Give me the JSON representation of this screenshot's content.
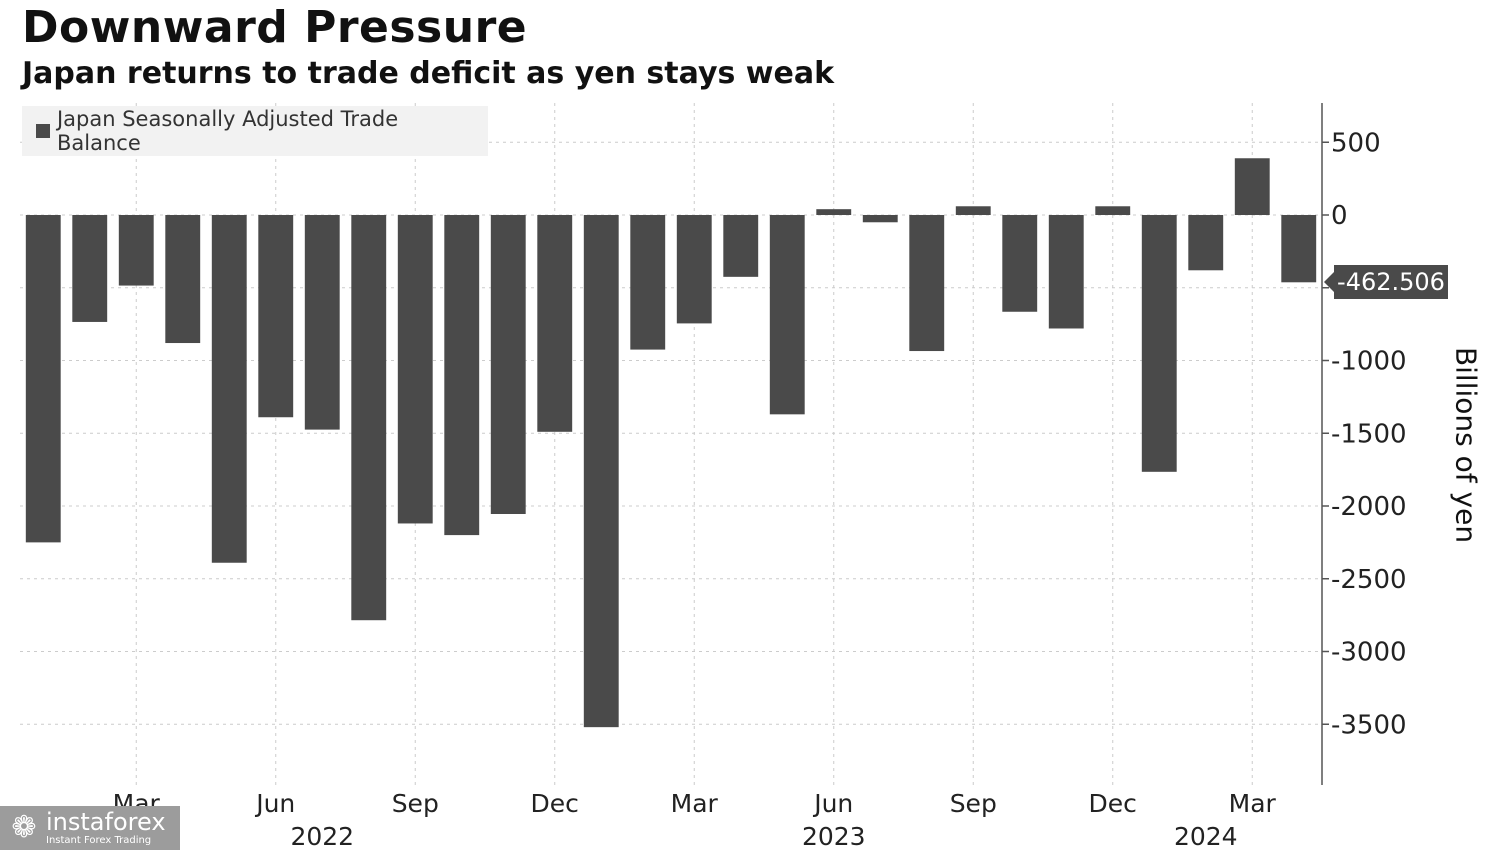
{
  "header": {
    "title": "Downward Pressure",
    "subtitle": "Japan returns to trade deficit as yen stays weak"
  },
  "legend": {
    "label": "Japan Seasonally Adjusted Trade Balance"
  },
  "callout": {
    "value": "-462.506"
  },
  "watermark": {
    "name": "instaforex",
    "tagline": "Instant Forex Trading",
    "icon": "instaforex-logo-icon"
  },
  "colors": {
    "bar": "#4a4a4a",
    "grid": "#cccccc",
    "axis": "#555555",
    "legend_bg": "#f2f2f2",
    "watermark_bg": "#9c9c9c"
  },
  "chart_data": {
    "type": "bar",
    "title": "Downward Pressure",
    "subtitle": "Japan returns to trade deficit as yen stays weak",
    "ylabel": "Billions of yen",
    "xlabel": "",
    "legend_position": "top-left",
    "grid": true,
    "y_axis_side": "right",
    "ylim": [
      -3900,
      750
    ],
    "yticks": [
      500,
      0,
      -500,
      -1000,
      -1500,
      -2000,
      -2500,
      -3000,
      -3500
    ],
    "ytick_labels": [
      "500",
      "0",
      "",
      "-1000",
      "-1500",
      "-2000",
      "-2500",
      "-3000",
      "-3500"
    ],
    "categories": [
      "Jan 2022",
      "Feb 2022",
      "Mar 2022",
      "Apr 2022",
      "May 2022",
      "Jun 2022",
      "Jul 2022",
      "Aug 2022",
      "Sep 2022",
      "Oct 2022",
      "Nov 2022",
      "Dec 2022",
      "Jan 2023",
      "Feb 2023",
      "Mar 2023",
      "Apr 2023",
      "May 2023",
      "Jun 2023",
      "Jul 2023",
      "Aug 2023",
      "Sep 2023",
      "Oct 2023",
      "Nov 2023",
      "Dec 2023",
      "Jan 2024",
      "Feb 2024",
      "Mar 2024",
      "Apr 2024"
    ],
    "series": [
      {
        "name": "Japan Seasonally Adjusted Trade Balance",
        "values": [
          -2250,
          -735,
          -485,
          -880,
          -2390,
          -1390,
          -1475,
          -2785,
          -2120,
          -2200,
          -2055,
          -1490,
          -3520,
          -925,
          -745,
          -425,
          -1370,
          40,
          -50,
          -935,
          60,
          -665,
          -780,
          60,
          -1765,
          -380,
          390,
          -462.506
        ]
      }
    ],
    "x_tick_labels": [
      {
        "category": "Mar 2022",
        "label": "Mar"
      },
      {
        "category": "Jun 2022",
        "label": "Jun"
      },
      {
        "category": "Sep 2022",
        "label": "Sep"
      },
      {
        "category": "Dec 2022",
        "label": "Dec"
      },
      {
        "category": "Mar 2023",
        "label": "Mar"
      },
      {
        "category": "Jun 2023",
        "label": "Jun"
      },
      {
        "category": "Sep 2023",
        "label": "Sep"
      },
      {
        "category": "Dec 2023",
        "label": "Dec"
      },
      {
        "category": "Mar 2024",
        "label": "Mar"
      }
    ],
    "year_labels": [
      {
        "category": "Jul 2022",
        "label": "2022"
      },
      {
        "category": "Jun 2023",
        "label": "2023"
      },
      {
        "category": "Feb 2024",
        "label": "2024"
      }
    ],
    "last_value_label": "-462.506"
  }
}
